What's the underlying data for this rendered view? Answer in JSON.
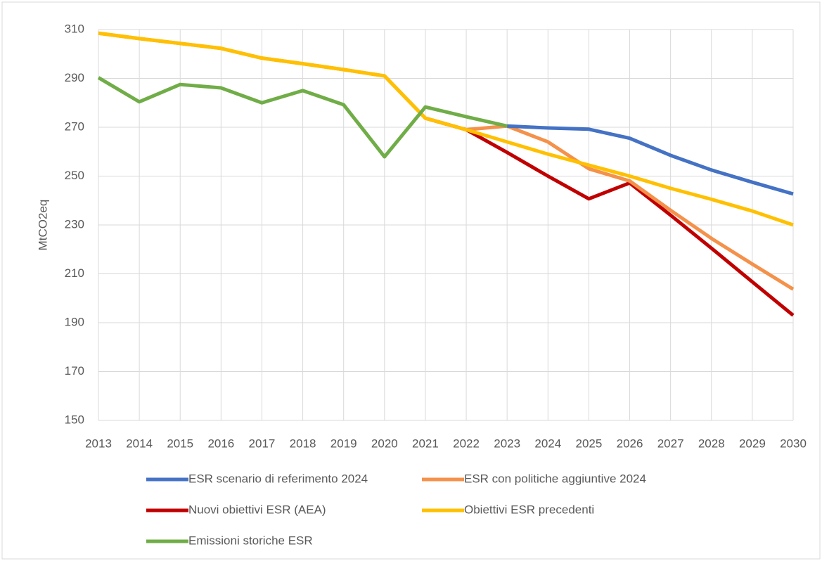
{
  "chart_data": {
    "type": "line",
    "y_label": "MtCO2eq",
    "x": [
      2013,
      2014,
      2015,
      2016,
      2017,
      2018,
      2019,
      2020,
      2021,
      2022,
      2023,
      2024,
      2025,
      2026,
      2027,
      2028,
      2029,
      2030
    ],
    "xlim": [
      2013,
      2030
    ],
    "ylim": [
      150,
      310
    ],
    "yticks": [
      150,
      170,
      190,
      210,
      230,
      250,
      270,
      290,
      310
    ],
    "grid": true,
    "legend": "bottom",
    "series": [
      {
        "name": "ESR scenario di referimento 2024",
        "color": "#4472c4",
        "values": [
          null,
          null,
          null,
          null,
          null,
          null,
          null,
          null,
          null,
          null,
          270.5,
          269.7,
          269.2,
          265.5,
          258.5,
          252.5,
          247.5,
          242.7
        ]
      },
      {
        "name": "ESR con politiche aggiuntive 2024",
        "color": "#f4914a",
        "values": [
          308.5,
          306.3,
          304.3,
          302.3,
          298.3,
          296,
          293.6,
          291,
          273.7,
          269,
          270.5,
          264,
          253,
          248,
          236,
          224.5,
          214,
          203.7
        ]
      },
      {
        "name": "Nuovi obiettivi ESR (AEA)",
        "color": "#c00000",
        "values": [
          null,
          null,
          null,
          null,
          null,
          null,
          null,
          null,
          273.7,
          269,
          259.7,
          250,
          240.7,
          247.2,
          234,
          220.5,
          206.7,
          193
        ]
      },
      {
        "name": "Obiettivi ESR precedenti",
        "color": "#ffc000",
        "values": [
          308.5,
          306.3,
          304.3,
          302.3,
          298.3,
          296,
          293.6,
          291,
          273.7,
          269,
          264,
          259,
          254.5,
          250,
          245,
          240.5,
          235.7,
          230
        ]
      },
      {
        "name": "Emissioni storiche ESR",
        "color": "#70ad47",
        "values": [
          290.3,
          280.4,
          287.5,
          286.1,
          280,
          285,
          279.2,
          257.9,
          278.3,
          274.3,
          270.5,
          null,
          null,
          null,
          null,
          null,
          null,
          null
        ]
      }
    ]
  }
}
